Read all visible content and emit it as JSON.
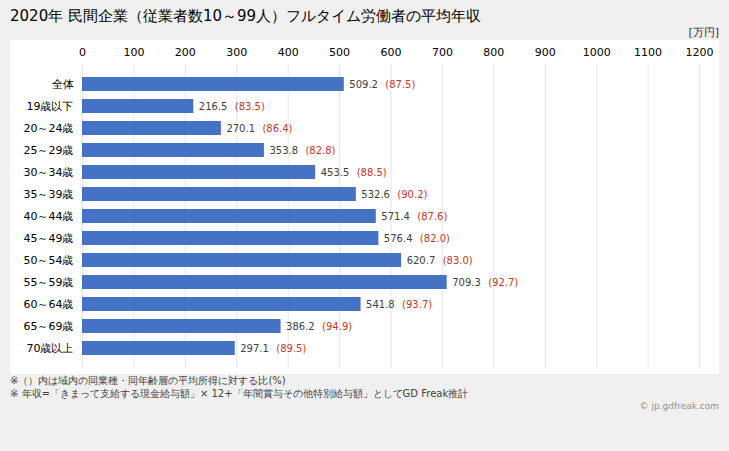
{
  "chart_data": {
    "type": "bar",
    "orientation": "horizontal",
    "title": "2020年 民間企業（従業者数10～99人）フルタイム労働者の平均年収",
    "xlabel": "[万円]",
    "categories": [
      "全体",
      "19歳以下",
      "20～24歳",
      "25～29歳",
      "30～34歳",
      "35～39歳",
      "40～44歳",
      "45～49歳",
      "50～54歳",
      "55～59歳",
      "60～64歳",
      "65～69歳",
      "70歳以上"
    ],
    "values": [
      509.2,
      216.5,
      270.1,
      353.8,
      453.5,
      532.6,
      571.4,
      576.4,
      620.7,
      709.3,
      541.8,
      386.2,
      297.1
    ],
    "ratios": [
      87.5,
      83.5,
      86.4,
      82.8,
      88.5,
      90.2,
      87.6,
      82.0,
      83.0,
      92.7,
      93.7,
      94.9,
      89.5
    ],
    "ratio_labels": [
      "(87.5)",
      "(83.5)",
      "(86.4)",
      "(82.8)",
      "(88.5)",
      "(90.2)",
      "(87.6)",
      "(82.0)",
      "(83.0)",
      "(92.7)",
      "(93.7)",
      "(94.9)",
      "(89.5)"
    ],
    "color": "#4472c4",
    "xlim": [
      0,
      1200
    ],
    "xticks": [
      0,
      100,
      200,
      300,
      400,
      500,
      600,
      700,
      800,
      900,
      1000,
      1100,
      1200
    ],
    "grid": true,
    "data_labels": true,
    "annotations": [
      "※（）内は域内の同業種・同年齢層の平均所得に対する比(%)",
      "※ 年収=「きまって支給する現金給与額」× 12+「年間賞与その他特別給与額」としてGD Freak推計",
      "© jp.gdfreak.com"
    ]
  }
}
